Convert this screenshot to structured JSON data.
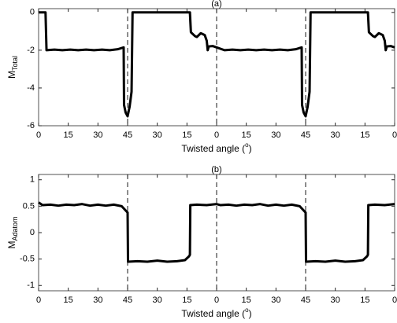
{
  "chart_data": [
    {
      "type": "line",
      "title": "(a)",
      "xlabel": [
        "Twisted angle (",
        "o",
        ")"
      ],
      "ylabel": [
        "M",
        "Total"
      ],
      "xlim": [
        0,
        180
      ],
      "ylim": [
        -6,
        0.2
      ],
      "xticks": [
        0,
        15,
        30,
        45,
        {
          "value": 60,
          "label": "30"
        },
        {
          "value": 75,
          "label": "15"
        },
        {
          "value": 90,
          "label": "0"
        },
        {
          "value": 105,
          "label": "15"
        },
        {
          "value": 120,
          "label": "30"
        },
        {
          "value": 135,
          "label": "45"
        },
        {
          "value": 150,
          "label": "30"
        },
        {
          "value": 165,
          "label": "15"
        },
        {
          "value": 180,
          "label": "0"
        }
      ],
      "yticks": [
        0,
        -2,
        -4,
        -6
      ],
      "vlines": [
        45,
        90,
        135
      ],
      "color": "#000000",
      "x": [
        0,
        3.5,
        4,
        8,
        12,
        16,
        20,
        24,
        28,
        32,
        36,
        40,
        43,
        43.2,
        44,
        45,
        46,
        47,
        47.5,
        48,
        56,
        64,
        72,
        76.5,
        77,
        79,
        80,
        82,
        84,
        85,
        85.5,
        86,
        88,
        90,
        94,
        98,
        102,
        106,
        110,
        114,
        118,
        122,
        126,
        130,
        133,
        133.2,
        134,
        135,
        136,
        137,
        137.5,
        138,
        146,
        154,
        162,
        166.5,
        167,
        169,
        170,
        172,
        174,
        175,
        175.5,
        176,
        178,
        180
      ],
      "values": [
        0,
        0,
        -2,
        -1.97,
        -2,
        -1.97,
        -2,
        -1.97,
        -2,
        -1.97,
        -2,
        -1.95,
        -1.85,
        -4.9,
        -5.3,
        -5.5,
        -5,
        -4.2,
        0,
        0,
        0,
        0,
        0,
        0,
        -1.05,
        -1.25,
        -1.3,
        -1.1,
        -1.2,
        -1.5,
        -2,
        -1.8,
        -1.78,
        -1.85,
        -2,
        -1.97,
        -2,
        -1.97,
        -2,
        -1.97,
        -2,
        -1.97,
        -2,
        -1.95,
        -1.85,
        -4.9,
        -5.3,
        -5.5,
        -5,
        -4.2,
        0,
        0,
        0,
        0,
        0,
        0,
        -1.05,
        -1.25,
        -1.3,
        -1.1,
        -1.2,
        -1.5,
        -2,
        -1.8,
        -1.78,
        -1.85
      ]
    },
    {
      "type": "line",
      "title": "(b)",
      "xlabel": [
        "Twisted angle (",
        "o",
        ")"
      ],
      "ylabel": [
        "M",
        "Adatom"
      ],
      "xlim": [
        0,
        180
      ],
      "ylim": [
        -1.1,
        1.1
      ],
      "xticks": [
        0,
        15,
        30,
        45,
        {
          "value": 60,
          "label": "30"
        },
        {
          "value": 75,
          "label": "15"
        },
        {
          "value": 90,
          "label": "0"
        },
        {
          "value": 105,
          "label": "15"
        },
        {
          "value": 120,
          "label": "30"
        },
        {
          "value": 135,
          "label": "45"
        },
        {
          "value": 150,
          "label": "30"
        },
        {
          "value": 165,
          "label": "15"
        },
        {
          "value": 180,
          "label": "0"
        }
      ],
      "yticks": [
        1,
        0.5,
        0,
        -0.5,
        -1
      ],
      "vlines": [
        45,
        90,
        135
      ],
      "color": "#000000",
      "x": [
        0,
        2,
        6,
        10,
        14,
        18,
        22,
        26,
        30,
        34,
        38,
        42,
        44,
        45,
        45.2,
        50,
        55,
        60,
        65,
        70,
        74,
        76,
        76.5,
        76.7,
        80,
        85,
        90,
        92,
        96,
        100,
        104,
        108,
        112,
        116,
        120,
        124,
        128,
        132,
        134,
        135,
        135.2,
        140,
        145,
        150,
        155,
        160,
        164,
        166,
        166.5,
        166.7,
        170,
        175,
        180
      ],
      "values": [
        0.57,
        0.52,
        0.53,
        0.51,
        0.53,
        0.52,
        0.54,
        0.51,
        0.53,
        0.51,
        0.53,
        0.5,
        0.42,
        0.38,
        -0.55,
        -0.54,
        -0.55,
        -0.53,
        -0.55,
        -0.54,
        -0.52,
        -0.45,
        -0.42,
        0.52,
        0.53,
        0.52,
        0.54,
        0.52,
        0.53,
        0.51,
        0.53,
        0.52,
        0.54,
        0.51,
        0.53,
        0.51,
        0.53,
        0.5,
        0.42,
        0.38,
        -0.55,
        -0.54,
        -0.55,
        -0.53,
        -0.55,
        -0.54,
        -0.52,
        -0.45,
        -0.42,
        0.52,
        0.53,
        0.52,
        0.54
      ]
    }
  ]
}
